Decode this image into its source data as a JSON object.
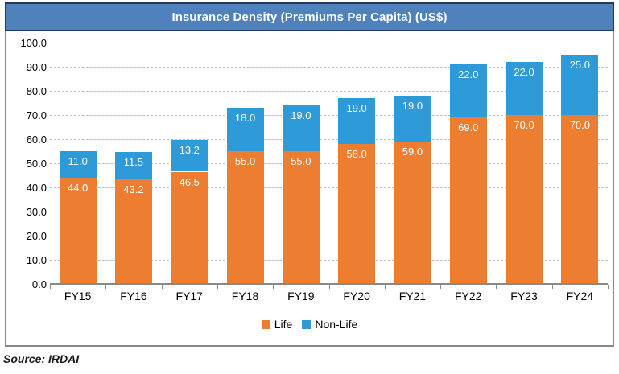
{
  "chart": {
    "title": "Insurance Density (Premiums Per Capita) (US$)"
  },
  "source": "Source: IRDAI",
  "colors": {
    "title_bar_bg": "#4F81BD",
    "title_bar_border": "#1F3864",
    "life": "#ED7D31",
    "non_life": "#2E9AD8",
    "gridline": "#C3C3C3",
    "axis": "#898989",
    "bar_label_text": "#FFFFFF"
  },
  "chart_data": {
    "type": "bar",
    "stacked": true,
    "title": "Insurance Density (Premiums Per Capita) (US$)",
    "xlabel": "",
    "ylabel": "",
    "categories": [
      "FY15",
      "FY16",
      "FY17",
      "FY18",
      "FY19",
      "FY20",
      "FY21",
      "FY22",
      "FY23",
      "FY24"
    ],
    "series": [
      {
        "name": "Life",
        "color": "#ED7D31",
        "values": [
          44.0,
          43.2,
          46.5,
          55.0,
          55.0,
          58.0,
          59.0,
          69.0,
          70.0,
          70.0
        ]
      },
      {
        "name": "Non-Life",
        "color": "#2E9AD8",
        "values": [
          11.0,
          11.5,
          13.2,
          18.0,
          19.0,
          19.0,
          19.0,
          22.0,
          22.0,
          25.0
        ]
      }
    ],
    "ylim": [
      0,
      100
    ],
    "ytick_step": 10,
    "ytick_labels": [
      "0.0",
      "10.0",
      "20.0",
      "30.0",
      "40.0",
      "50.0",
      "60.0",
      "70.0",
      "80.0",
      "90.0",
      "100.0"
    ],
    "grid": "dashed-horizontal",
    "legend_position": "bottom-center",
    "value_labels": "inside-end"
  }
}
